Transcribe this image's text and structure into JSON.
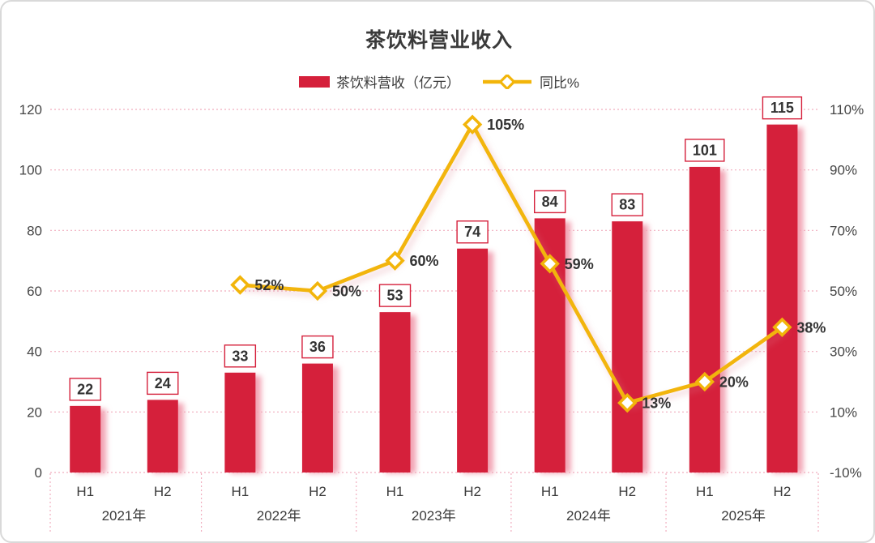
{
  "page": {
    "background": "#ffffff",
    "card_border_color": "#d9d9d9"
  },
  "chart_data": {
    "type": "combo",
    "title": "茶饮料营业收入",
    "legend_position": "top",
    "grid": {
      "on": true,
      "color": "#F0ADBE",
      "style": "dotted"
    },
    "categories": [
      "H1",
      "H2",
      "H1",
      "H2",
      "H1",
      "H2",
      "H1",
      "H2",
      "H1",
      "H2"
    ],
    "groups": [
      {
        "label": "2021年",
        "span": 2
      },
      {
        "label": "2022年",
        "span": 2
      },
      {
        "label": "2023年",
        "span": 2
      },
      {
        "label": "2024年",
        "span": 2
      },
      {
        "label": "2025年",
        "span": 2
      }
    ],
    "series": [
      {
        "name": "茶饮料营收（亿元）",
        "type": "bar",
        "color": "#D5203B",
        "shadow_color": "#F2A3B3",
        "axis": "left",
        "values": [
          22,
          24,
          33,
          36,
          53,
          74,
          84,
          83,
          101,
          115
        ]
      },
      {
        "name": "同比%",
        "type": "line",
        "color": "#F2B50A",
        "marker": "diamond",
        "axis": "right",
        "values": [
          null,
          null,
          52,
          50,
          60,
          105,
          59,
          13,
          20,
          38
        ],
        "label_suffix": "%"
      }
    ],
    "left_axis": {
      "min": 0,
      "max": 120,
      "step": 20,
      "ticks": [
        "0",
        "20",
        "40",
        "60",
        "80",
        "100",
        "120"
      ]
    },
    "right_axis": {
      "min": -10,
      "max": 110,
      "step": 20,
      "ticks": [
        "-10%",
        "10%",
        "30%",
        "50%",
        "70%",
        "90%",
        "110%"
      ]
    },
    "value_label_text_color": "#333333"
  }
}
